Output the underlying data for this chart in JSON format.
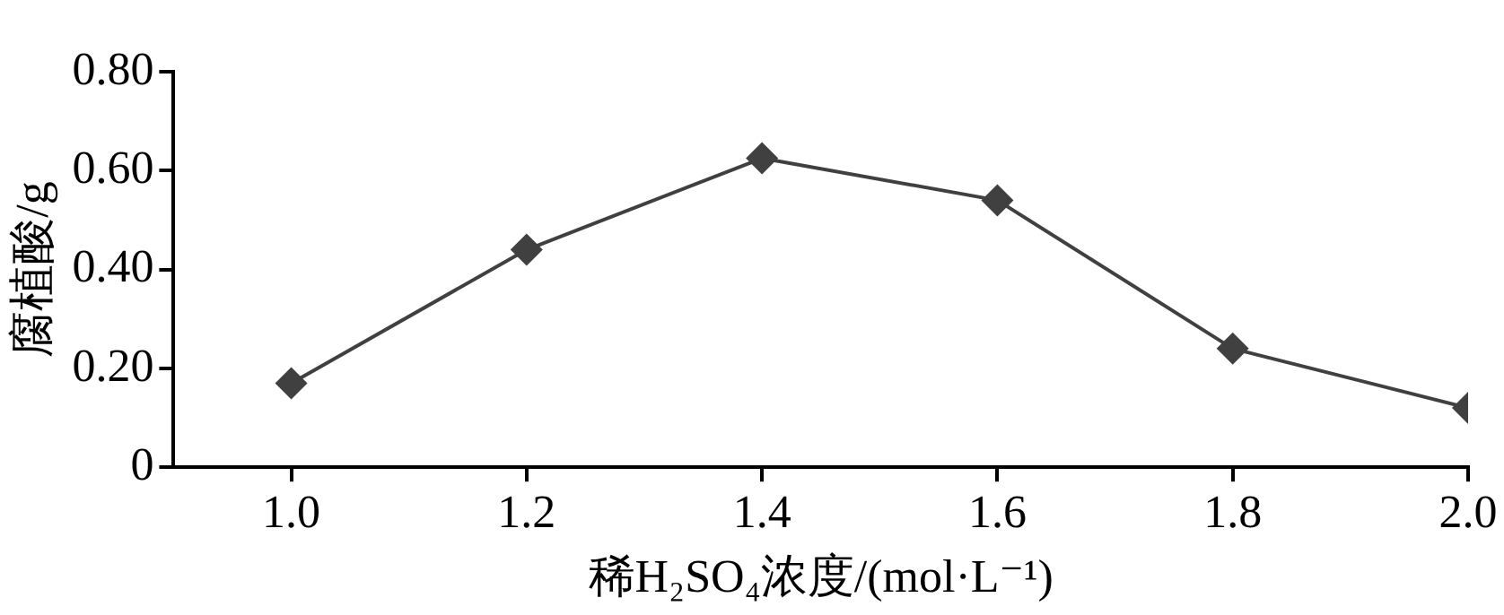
{
  "chart_data": {
    "type": "line",
    "xlabel": "稀H₂SO₄浓度/(mol·L⁻¹)",
    "ylabel": "腐植酸/g",
    "x": [
      1.0,
      1.2,
      1.4,
      1.6,
      1.8,
      2.0
    ],
    "series": [
      {
        "color": "#404040",
        "values": [
          0.17,
          0.44,
          0.625,
          0.54,
          0.24,
          0.12
        ]
      }
    ],
    "xlim": [
      0.9,
      2.0
    ],
    "xticks": [
      {
        "value": 1,
        "label": "1.0"
      },
      {
        "value": 1.2,
        "label": "1.2"
      },
      {
        "value": 1.4,
        "label": "1.4"
      },
      {
        "value": 1.6,
        "label": "1.6"
      },
      {
        "value": 1.8,
        "label": "1.8"
      },
      {
        "value": 2,
        "label": "2.0"
      }
    ],
    "ylim": [
      0,
      0.8
    ],
    "yticks": [
      0,
      {
        "value": 0.2,
        "label": "0.20"
      },
      {
        "value": 0.4,
        "label": "0.40"
      },
      {
        "value": 0.6,
        "label": "0.60"
      },
      {
        "value": 0.8,
        "label": "0.80"
      }
    ],
    "grid": false,
    "legend": false,
    "marker": "diamond",
    "line_style": "solid"
  }
}
